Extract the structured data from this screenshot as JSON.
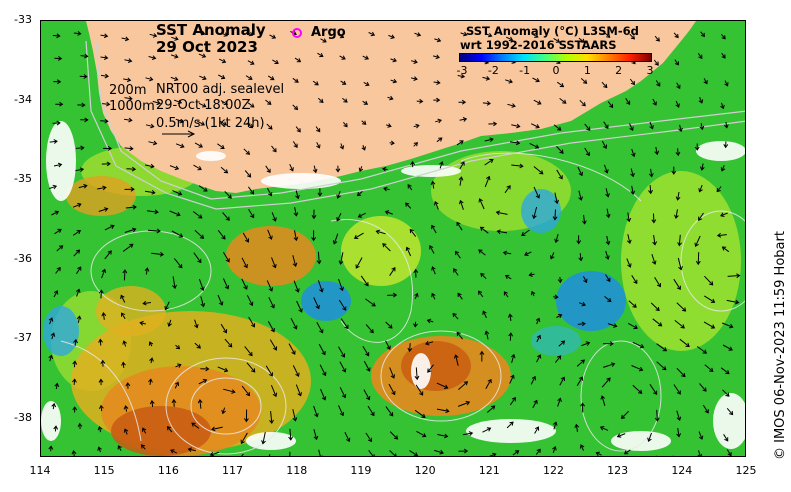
{
  "title": {
    "line1": "SST Anomaly",
    "line2": "29 Oct 2023"
  },
  "argo_label": "Argo",
  "info": {
    "depth_200": "200m",
    "depth_1000": "1000m",
    "sealevel": "NRT00 adj. sealevel",
    "datetime": "29-Oct 18:00Z",
    "scale": "0.5m/s (1kt 24h)"
  },
  "colorbar": {
    "title_line1": "SST Anomaly (°C) L3SM-6d",
    "title_line2": "wrt 1992-2016 SSTAARS",
    "ticks": [
      "-3",
      "-2",
      "-1",
      "0",
      "1",
      "2",
      "3"
    ],
    "colors": [
      "#00007f",
      "#0000ff",
      "#0080ff",
      "#00e0ff",
      "#40ff80",
      "#b0ff00",
      "#ffe000",
      "#ff8000",
      "#ff2000",
      "#7f0000"
    ]
  },
  "axes": {
    "x_ticks": [
      "114",
      "115",
      "116",
      "117",
      "118",
      "119",
      "120",
      "121",
      "122",
      "123",
      "124",
      "125"
    ],
    "y_ticks": [
      "-33",
      "-34",
      "-35",
      "-36",
      "-37",
      "-38"
    ]
  },
  "credit": "© IMOS 06-Nov-2023 11:59 Hobart",
  "palette": {
    "land": "#f9c79e",
    "ocean_base": "#35c233",
    "warm": "#e58a1e",
    "hot": "#c85a12",
    "cool": "#1f8fe0",
    "mild": "#b8e830",
    "nodata": "#ffffff"
  }
}
